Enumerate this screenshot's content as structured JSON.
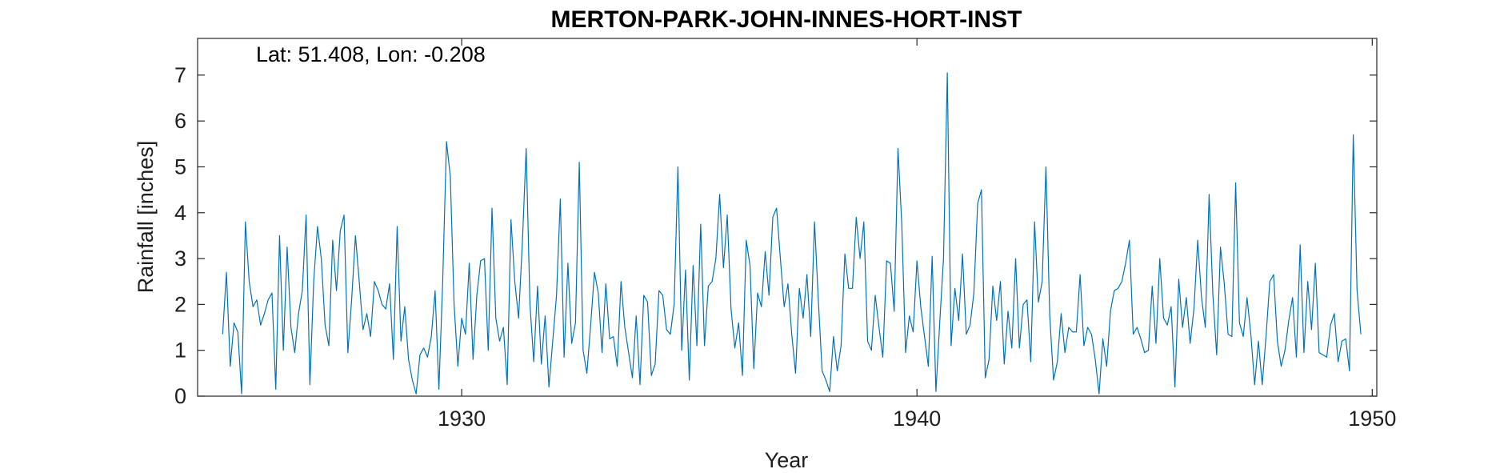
{
  "chart_data": {
    "type": "line",
    "title": "MERTON-PARK-JOHN-INNES-HORT-INST",
    "annotation": "Lat: 51.408, Lon: -0.208",
    "xlabel": "Year",
    "ylabel": "Rainfall [inches]",
    "xlim": [
      1924.2,
      1950.1
    ],
    "ylim": [
      0,
      7.8
    ],
    "xticks": [
      1930,
      1940,
      1950
    ],
    "yticks": [
      0,
      1,
      2,
      3,
      4,
      5,
      6,
      7
    ],
    "grid": false,
    "box": true,
    "series": [
      {
        "color": "#0072BD",
        "x_start": 1924.75,
        "x_step": 0.0833333,
        "values": [
          1.35,
          2.7,
          0.65,
          1.6,
          1.4,
          0.05,
          3.8,
          2.5,
          1.95,
          2.1,
          1.55,
          1.8,
          2.1,
          2.25,
          0.15,
          3.5,
          1.0,
          3.25,
          1.5,
          0.95,
          1.8,
          2.3,
          3.95,
          0.25,
          2.5,
          3.7,
          3.0,
          1.55,
          1.1,
          3.4,
          2.3,
          3.6,
          3.95,
          0.95,
          2.1,
          3.5,
          2.5,
          1.45,
          1.8,
          1.3,
          2.5,
          2.3,
          2.0,
          1.9,
          2.45,
          0.8,
          3.7,
          1.2,
          1.95,
          0.8,
          0.35,
          0.05,
          0.9,
          1.05,
          0.85,
          1.3,
          2.3,
          0.15,
          2.5,
          5.55,
          4.8,
          2.0,
          0.65,
          1.7,
          1.35,
          2.9,
          0.8,
          2.2,
          2.95,
          3.0,
          1.0,
          4.1,
          1.7,
          1.2,
          1.5,
          0.25,
          3.85,
          2.5,
          1.7,
          3.35,
          5.4,
          2.0,
          0.75,
          2.4,
          0.7,
          1.75,
          0.2,
          1.2,
          2.2,
          4.3,
          0.85,
          2.9,
          1.15,
          1.6,
          5.1,
          1.0,
          0.5,
          1.55,
          2.7,
          2.25,
          0.95,
          2.45,
          1.25,
          1.3,
          0.65,
          2.5,
          1.5,
          0.95,
          0.4,
          1.75,
          0.25,
          2.2,
          2.05,
          0.45,
          0.7,
          2.3,
          2.2,
          1.45,
          1.35,
          2.0,
          5.0,
          1.0,
          2.75,
          0.35,
          2.85,
          1.1,
          3.75,
          1.1,
          2.4,
          2.5,
          3.0,
          4.4,
          2.8,
          3.95,
          1.9,
          1.05,
          1.6,
          0.45,
          3.4,
          2.85,
          0.6,
          2.25,
          1.95,
          3.15,
          2.2,
          3.9,
          4.1,
          3.0,
          1.95,
          2.45,
          1.35,
          0.5,
          2.35,
          1.7,
          2.65,
          1.3,
          3.8,
          2.1,
          0.55,
          0.35,
          0.1,
          1.3,
          0.55,
          1.1,
          3.1,
          2.35,
          2.35,
          3.9,
          3.0,
          3.8,
          1.2,
          1.0,
          2.2,
          1.5,
          0.85,
          2.95,
          2.9,
          1.85,
          5.4,
          3.75,
          0.95,
          1.75,
          1.4,
          2.95,
          1.95,
          1.3,
          0.65,
          3.05,
          0.1,
          1.6,
          3.0,
          7.05,
          1.1,
          2.35,
          1.65,
          3.1,
          1.35,
          1.55,
          2.25,
          4.2,
          4.5,
          0.4,
          0.8,
          2.4,
          1.65,
          2.5,
          0.7,
          1.85,
          1.05,
          3.0,
          1.05,
          2.0,
          2.1,
          0.75,
          3.8,
          2.05,
          2.5,
          5.0,
          1.75,
          0.35,
          0.75,
          1.8,
          0.95,
          1.5,
          1.4,
          1.4,
          2.65,
          1.1,
          1.5,
          1.35,
          0.8,
          0.05,
          1.25,
          0.65,
          1.85,
          2.3,
          2.35,
          2.5,
          2.9,
          3.4,
          1.35,
          1.5,
          1.25,
          0.95,
          1.0,
          2.4,
          1.15,
          3.0,
          1.7,
          1.55,
          1.95,
          0.2,
          2.55,
          1.5,
          2.15,
          1.15,
          1.9,
          3.4,
          2.15,
          1.5,
          4.4,
          2.2,
          0.9,
          3.25,
          2.45,
          1.35,
          1.3,
          4.65,
          1.6,
          1.3,
          2.15,
          1.35,
          0.25,
          1.2,
          0.25,
          1.3,
          2.5,
          2.65,
          1.2,
          0.65,
          1.0,
          1.65,
          2.15,
          0.85,
          3.3,
          0.95,
          2.5,
          1.45,
          2.9,
          0.95,
          0.9,
          0.85,
          1.55,
          1.8,
          0.75,
          1.2,
          1.25,
          0.55,
          5.7,
          2.3,
          1.35
        ]
      }
    ]
  }
}
